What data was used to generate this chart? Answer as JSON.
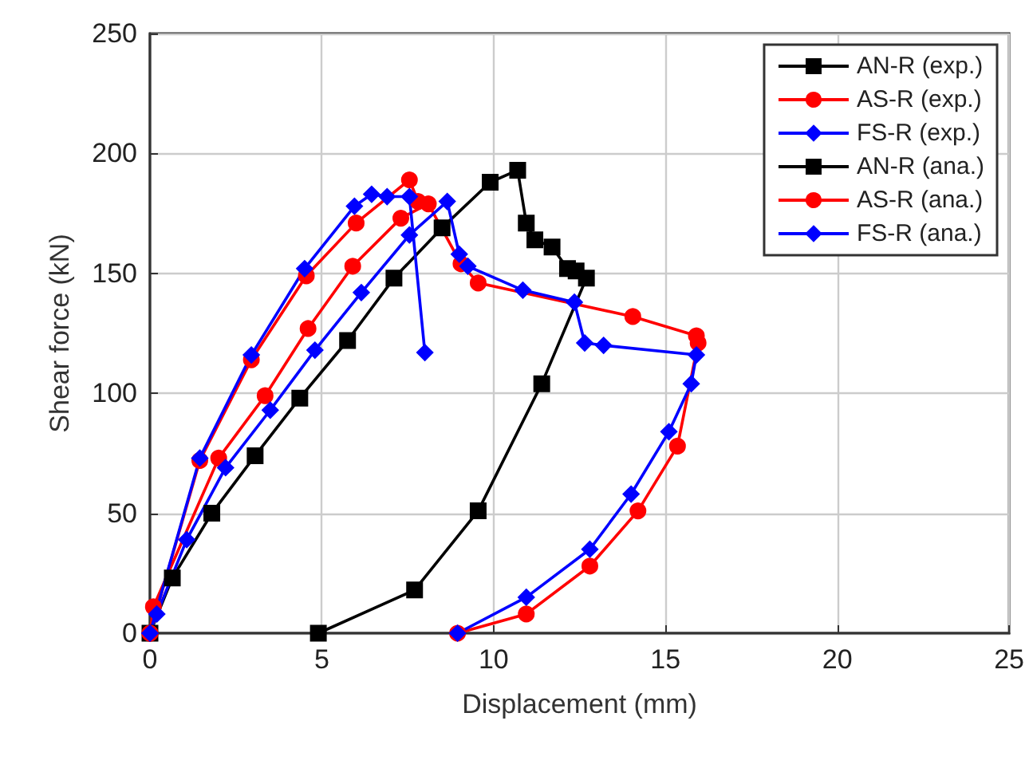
{
  "chart_data": {
    "type": "line",
    "xlabel": "Displacement (mm)",
    "ylabel": "Shear force (kN)",
    "xlim": [
      0,
      25
    ],
    "ylim": [
      0,
      250
    ],
    "xticks": [
      0,
      5,
      10,
      15,
      20,
      25
    ],
    "yticks": [
      0,
      50,
      100,
      150,
      200,
      250
    ],
    "grid": true,
    "legend": "top right",
    "line_style": "solid",
    "series": [
      {
        "name": "AN-R (exp.)",
        "color": "#000000",
        "marker": "square",
        "x": [
          0,
          0.65,
          1.8,
          3.06,
          4.36,
          5.75,
          7.1,
          8.5,
          9.9,
          10.7,
          10.95,
          11.2,
          11.7,
          12.15,
          12.4,
          12.7,
          11.4,
          9.55,
          7.7,
          4.9
        ],
        "values": [
          0,
          23,
          50,
          74,
          98,
          122,
          148,
          169,
          188,
          193,
          171,
          164,
          161,
          152,
          151,
          148,
          104,
          51,
          18,
          0
        ]
      },
      {
        "name": "AS-R (exp.)",
        "color": "#ff0000",
        "marker": "circle",
        "x": [
          0,
          0.1,
          2.0,
          3.35,
          4.6,
          5.9,
          7.3,
          8.1,
          9.05,
          9.55,
          14.05,
          15.9,
          15.95,
          15.35,
          14.2,
          12.8,
          10.95,
          8.95
        ],
        "values": [
          0,
          11,
          73,
          99,
          127,
          153,
          173,
          179,
          154,
          146,
          132,
          124,
          121,
          78,
          51,
          28,
          8,
          0
        ]
      },
      {
        "name": "FS-R (exp.)",
        "color": "#0000ff",
        "marker": "diamond",
        "x": [
          0,
          0.2,
          1.07,
          2.2,
          3.5,
          4.8,
          6.15,
          7.55,
          8.65,
          9.0,
          9.25,
          10.85,
          12.35,
          12.65,
          13.2,
          15.9,
          15.75,
          15.1,
          14.0,
          12.8,
          10.95,
          8.95
        ],
        "values": [
          0,
          8,
          39,
          69,
          93,
          118,
          142,
          166,
          180,
          158,
          153,
          143,
          138,
          121,
          120,
          116,
          104,
          84,
          58,
          35,
          15,
          0
        ]
      },
      {
        "name": "AN-R (ana.)",
        "color": "#000000",
        "marker": "square"
      },
      {
        "name": "AS-R (ana.)",
        "color": "#ff0000",
        "marker": "circle",
        "x": [
          0,
          1.45,
          2.95,
          4.55,
          6.0,
          7.55,
          7.8
        ],
        "values": [
          0,
          72,
          114,
          149,
          171,
          189,
          180
        ]
      },
      {
        "name": "FS-R (ana.)",
        "color": "#0000ff",
        "marker": "diamond",
        "x": [
          0,
          1.45,
          2.95,
          4.5,
          5.95,
          6.45,
          6.9,
          7.55,
          8.0
        ],
        "values": [
          0,
          73,
          116,
          152,
          178,
          183,
          182,
          182,
          117
        ]
      }
    ]
  }
}
